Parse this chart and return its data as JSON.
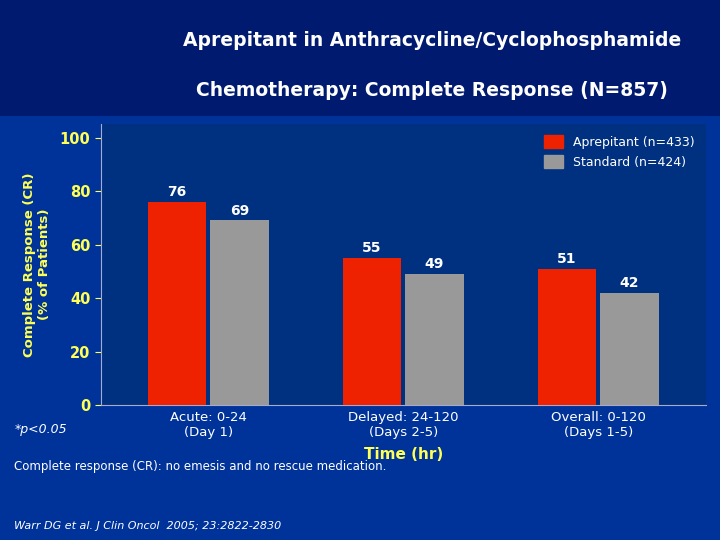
{
  "title_line1": "Aprepitant in Anthracycline/Cyclophosphamide",
  "title_line2": "Chemotherapy: Complete Response (N=857)",
  "categories": [
    "Acute: 0-24\n(Day 1)",
    "Delayed: 24-120\n(Days 2-5)",
    "Overall: 0-120\n(Days 1-5)"
  ],
  "aprepitant_values": [
    76,
    55,
    51
  ],
  "standard_values": [
    69,
    49,
    42
  ],
  "aprepitant_color": "#EE2200",
  "standard_color": "#999999",
  "legend_aprepitant": "Aprepitant (n=433)",
  "legend_standard": "Standard (n=424)",
  "ylabel_line1": "Complete Response (CR)",
  "ylabel_line2": "(% of Patients)",
  "xlabel": "Time (hr)",
  "ylim": [
    0,
    105
  ],
  "yticks": [
    0,
    20,
    40,
    60,
    80,
    100
  ],
  "bg_outer": "#003399",
  "bg_plot": "#003080",
  "bg_header": "#001a70",
  "title_color": "#FFFFFF",
  "ytick_label_color": "#FFFF55",
  "ylabel_color": "#FFFF55",
  "xtick_label_color": "#FFFFFF",
  "xlabel_color": "#FFFF55",
  "legend_text_color": "#FFFFFF",
  "bar_label_color": "#FFFFFF",
  "footnote1": "*p<0.05",
  "footnote2": "Complete response (CR): no emesis and no rescue medication.",
  "reference": "Warr DG et al. J Clin Oncol  2005; 23:2822-2830",
  "footnote_color": "#FFFFFF",
  "red_line_color": "#CC0000"
}
